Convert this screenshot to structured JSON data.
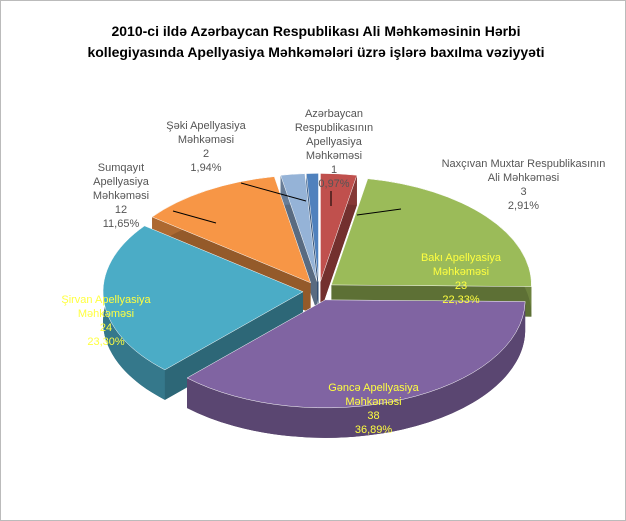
{
  "chart_data": {
    "type": "pie",
    "title": "2010-ci ildə Azərbaycan Respublikası Ali Məhkəməsinin Hərbi kollegiyasında Apellyasiya Məhkəmələri üzrə işlərə baxılma vəziyyəti",
    "categories": [
      "Naxçıvan Muxtar Respublikasının Ali Məhkəməsi",
      "Bakı Apellyasiya Məhkəməsi",
      "Gəncə Apellyasiya Məhkəməsi",
      "Şirvan Apellyasiya Məhkəməsi",
      "Sumqayıt Apellyasiya Məhkəməsi",
      "Şəki Apellyasiya Məhkəməsi",
      "Azərbaycan Respublikasının Apellyasiya Məhkəməsi"
    ],
    "values": [
      3,
      23,
      38,
      24,
      12,
      2,
      1
    ],
    "percent_labels": [
      "2,91%",
      "22,33%",
      "36,89%",
      "23,30%",
      "11,65%",
      "1,94%",
      "0,97%"
    ],
    "colors": [
      "#c0504d",
      "#9bbb59",
      "#8064a2",
      "#4bacc6",
      "#f79646",
      "#95b3d7",
      "#4f81bd"
    ]
  }
}
